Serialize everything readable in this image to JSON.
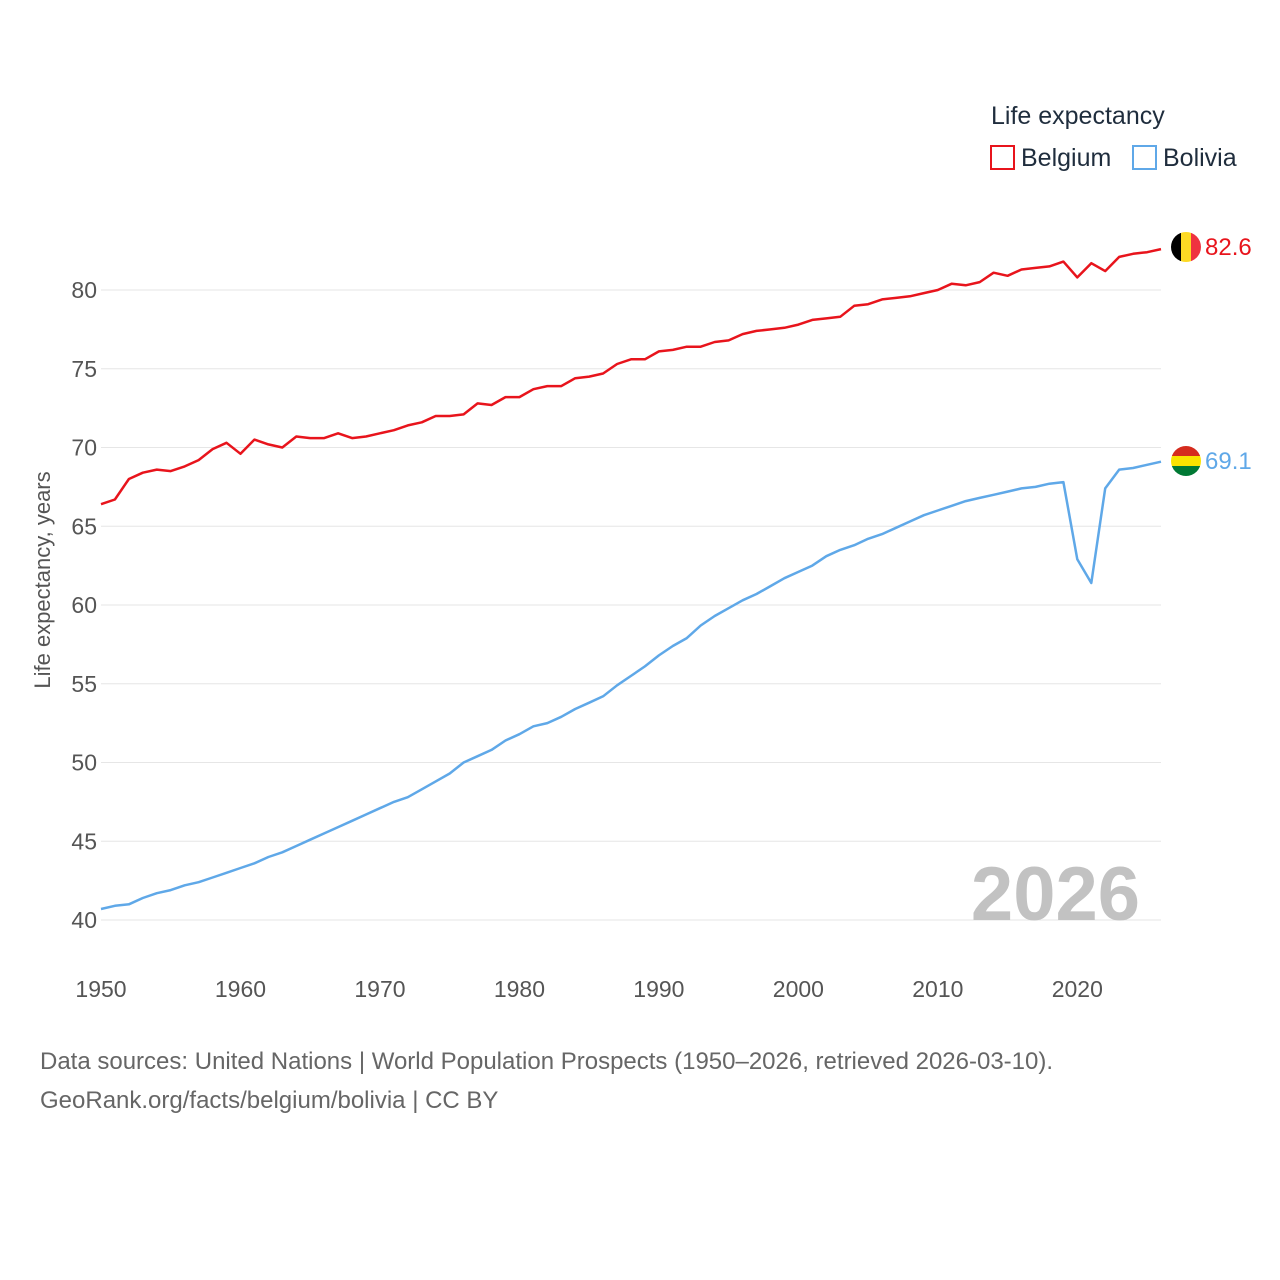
{
  "legend": {
    "title": "Life expectancy",
    "items": [
      {
        "name": "Belgium",
        "color": "#e8141c"
      },
      {
        "name": "Bolivia",
        "color": "#5fa8e8"
      }
    ]
  },
  "year_watermark": "2026",
  "footer": {
    "line1": "Data sources: United Nations | World Population Prospects (1950–2026, retrieved 2026-03-10).",
    "line2": "GeoRank.org/facts/belgium/bolivia | CC BY"
  },
  "chart_data": {
    "type": "line",
    "title": "Life expectancy",
    "xlabel": "",
    "ylabel": "Life expectancy, years",
    "xlim": [
      1950,
      2026
    ],
    "ylim": [
      40,
      84
    ],
    "x_ticks": [
      1950,
      1960,
      1970,
      1980,
      1990,
      2000,
      2010,
      2020
    ],
    "y_ticks": [
      40,
      45,
      50,
      55,
      60,
      65,
      70,
      75,
      80
    ],
    "grid": "horizontal",
    "legend_position": "top-right",
    "x": [
      1950,
      1951,
      1952,
      1953,
      1954,
      1955,
      1956,
      1957,
      1958,
      1959,
      1960,
      1961,
      1962,
      1963,
      1964,
      1965,
      1966,
      1967,
      1968,
      1969,
      1970,
      1971,
      1972,
      1973,
      1974,
      1975,
      1976,
      1977,
      1978,
      1979,
      1980,
      1981,
      1982,
      1983,
      1984,
      1985,
      1986,
      1987,
      1988,
      1989,
      1990,
      1991,
      1992,
      1993,
      1994,
      1995,
      1996,
      1997,
      1998,
      1999,
      2000,
      2001,
      2002,
      2003,
      2004,
      2005,
      2006,
      2007,
      2008,
      2009,
      2010,
      2011,
      2012,
      2013,
      2014,
      2015,
      2016,
      2017,
      2018,
      2019,
      2020,
      2021,
      2022,
      2023,
      2024,
      2025,
      2026
    ],
    "series": [
      {
        "name": "Belgium",
        "color": "#e8141c",
        "end_label": "82.6",
        "values": [
          66.4,
          66.7,
          68.0,
          68.4,
          68.6,
          68.5,
          68.8,
          69.2,
          69.9,
          70.3,
          69.6,
          70.5,
          70.2,
          70.0,
          70.7,
          70.6,
          70.6,
          70.9,
          70.6,
          70.7,
          70.9,
          71.1,
          71.4,
          71.6,
          72.0,
          72.0,
          72.1,
          72.8,
          72.7,
          73.2,
          73.2,
          73.7,
          73.9,
          73.9,
          74.4,
          74.5,
          74.7,
          75.3,
          75.6,
          75.6,
          76.1,
          76.2,
          76.4,
          76.4,
          76.7,
          76.8,
          77.2,
          77.4,
          77.5,
          77.6,
          77.8,
          78.1,
          78.2,
          78.3,
          79.0,
          79.1,
          79.4,
          79.5,
          79.6,
          79.8,
          80.0,
          80.4,
          80.3,
          80.5,
          81.1,
          80.9,
          81.3,
          81.4,
          81.5,
          81.8,
          80.8,
          81.7,
          81.2,
          82.1,
          82.3,
          82.4,
          82.6
        ]
      },
      {
        "name": "Bolivia",
        "color": "#5fa8e8",
        "end_label": "69.1",
        "values": [
          40.7,
          40.9,
          41.0,
          41.4,
          41.7,
          41.9,
          42.2,
          42.4,
          42.7,
          43.0,
          43.3,
          43.6,
          44.0,
          44.3,
          44.7,
          45.1,
          45.5,
          45.9,
          46.3,
          46.7,
          47.1,
          47.5,
          47.8,
          48.3,
          48.8,
          49.3,
          50.0,
          50.4,
          50.8,
          51.4,
          51.8,
          52.3,
          52.5,
          52.9,
          53.4,
          53.8,
          54.2,
          54.9,
          55.5,
          56.1,
          56.8,
          57.4,
          57.9,
          58.7,
          59.3,
          59.8,
          60.3,
          60.7,
          61.2,
          61.7,
          62.1,
          62.5,
          63.1,
          63.5,
          63.8,
          64.2,
          64.5,
          64.9,
          65.3,
          65.7,
          66.0,
          66.3,
          66.6,
          66.8,
          67.0,
          67.2,
          67.4,
          67.5,
          67.7,
          67.8,
          62.9,
          61.4,
          67.4,
          68.6,
          68.7,
          68.9,
          69.1
        ]
      }
    ]
  }
}
